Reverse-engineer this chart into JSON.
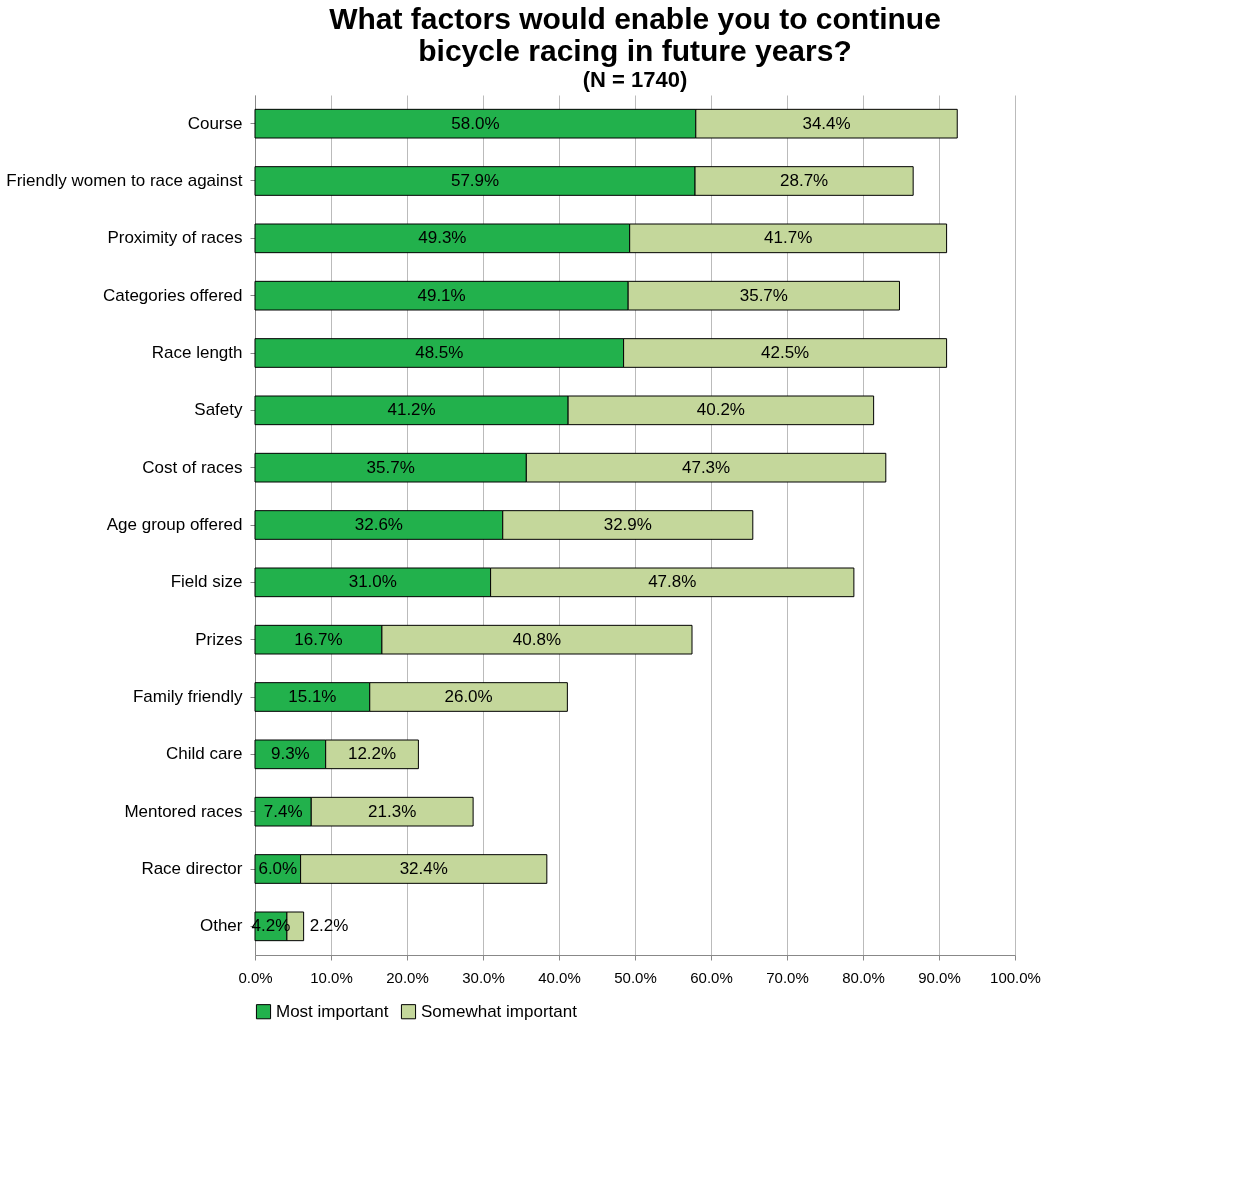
{
  "chart_data": {
    "type": "bar",
    "orientation": "horizontal",
    "stacked": true,
    "title": "What factors would enable you to continue bicycle racing in future years?",
    "subtitle": "(N = 1740)",
    "categories": [
      "Course",
      "Friendly women to race against",
      "Proximity of races",
      "Categories offered",
      "Race length",
      "Safety",
      "Cost of races",
      "Age group offered",
      "Field size",
      "Prizes",
      "Family friendly",
      "Child care",
      "Mentored races",
      "Race director",
      "Other"
    ],
    "series": [
      {
        "name": "Most important",
        "color": "#22b14c",
        "values": [
          58.0,
          57.9,
          49.3,
          49.1,
          48.5,
          41.2,
          35.7,
          32.6,
          31.0,
          16.7,
          15.1,
          9.3,
          7.4,
          6.0,
          4.2
        ],
        "value_labels": [
          "58.0%",
          "57.9%",
          "49.3%",
          "49.1%",
          "48.5%",
          "41.2%",
          "35.7%",
          "32.6%",
          "31.0%",
          "16.7%",
          "15.1%",
          "9.3%",
          "7.4%",
          "6.0%",
          "4.2%"
        ]
      },
      {
        "name": "Somewhat important",
        "color": "#c4d79b",
        "values": [
          34.4,
          28.7,
          41.7,
          35.7,
          42.5,
          40.2,
          47.3,
          32.9,
          47.8,
          40.8,
          26.0,
          12.2,
          21.3,
          32.4,
          2.2
        ],
        "value_labels": [
          "34.4%",
          "28.7%",
          "41.7%",
          "35.7%",
          "42.5%",
          "40.2%",
          "47.3%",
          "32.9%",
          "47.8%",
          "40.8%",
          "26.0%",
          "12.2%",
          "21.3%",
          "32.4%",
          "2.2%"
        ]
      }
    ],
    "xlim": [
      0,
      100
    ],
    "xticks": [
      {
        "value": 0,
        "label": "0.0%"
      },
      {
        "value": 10,
        "label": "10.0%"
      },
      {
        "value": 20,
        "label": "20.0%"
      },
      {
        "value": 30,
        "label": "30.0%"
      },
      {
        "value": 40,
        "label": "40.0%"
      },
      {
        "value": 50,
        "label": "50.0%"
      },
      {
        "value": 60,
        "label": "60.0%"
      },
      {
        "value": 70,
        "label": "70.0%"
      },
      {
        "value": 80,
        "label": "80.0%"
      },
      {
        "value": 90,
        "label": "90.0%"
      },
      {
        "value": 100,
        "label": "100.0%"
      }
    ],
    "grid": "x",
    "legend": "bottom"
  }
}
